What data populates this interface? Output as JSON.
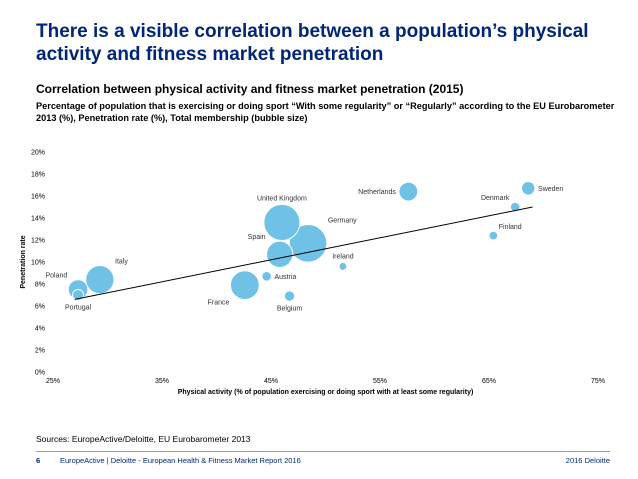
{
  "slide": {
    "title": "There is a visible correlation between a population’s physical activity and fitness market penetration",
    "subtitle": "Correlation between physical activity and fitness market penetration (2015)",
    "description": "Percentage of population that is exercising or doing sport “With some regularity” or “Regularly” according to the EU Eurobarometer 2013 (%), Penetration rate (%), Total membership (bubble size)",
    "sources": "Sources: EuropeActive/Deloitte, EU Eurobarometer 2013",
    "page_number": "6",
    "footer_text": "EuropeActive | Deloitte - European Health & Fitness Market Report 2016",
    "footer_right": "2016 Deloitte"
  },
  "colors": {
    "title": "#002776",
    "bubble": "#6fc2e6",
    "footer_line": "#86bc25"
  },
  "chart_data": {
    "type": "scatter",
    "xlabel": "Physical activity (% of population exercising or doing sport with at least some regularity)",
    "ylabel": "Penetration rate",
    "xlim": [
      0.25,
      0.75
    ],
    "ylim": [
      0,
      0.2
    ],
    "x_ticks": [
      "25%",
      "35%",
      "45%",
      "55%",
      "65%",
      "75%"
    ],
    "y_ticks": [
      "0%",
      "2%",
      "4%",
      "6%",
      "8%",
      "10%",
      "12%",
      "14%",
      "16%",
      "18%",
      "20%"
    ],
    "grid": false,
    "trendline": {
      "x": [
        0.27,
        0.69
      ],
      "y": [
        0.066,
        0.15
      ]
    },
    "points": [
      {
        "label": "Sweden",
        "x": 0.686,
        "y": 0.167,
        "size": 1.2,
        "label_pos": "right"
      },
      {
        "label": "Netherlands",
        "x": 0.576,
        "y": 0.164,
        "size": 2.3,
        "label_pos": "left"
      },
      {
        "label": "Denmark",
        "x": 0.674,
        "y": 0.15,
        "size": 0.6,
        "label_pos": "left-above"
      },
      {
        "label": "Finland",
        "x": 0.654,
        "y": 0.124,
        "size": 0.5,
        "label_pos": "right-above"
      },
      {
        "label": "United Kingdom",
        "x": 0.46,
        "y": 0.136,
        "size": 8.5,
        "label_pos": "above"
      },
      {
        "label": "Germany",
        "x": 0.484,
        "y": 0.117,
        "size": 9.2,
        "label_pos": "right-above"
      },
      {
        "label": "Spain",
        "x": 0.458,
        "y": 0.107,
        "size": 4.5,
        "label_pos": "left-above"
      },
      {
        "label": "Ireland",
        "x": 0.516,
        "y": 0.096,
        "size": 0.4,
        "label_pos": "above"
      },
      {
        "label": "Austria",
        "x": 0.446,
        "y": 0.087,
        "size": 0.6,
        "label_pos": "right"
      },
      {
        "label": "France",
        "x": 0.426,
        "y": 0.079,
        "size": 5.4,
        "label_pos": "left-below"
      },
      {
        "label": "Belgium",
        "x": 0.467,
        "y": 0.069,
        "size": 0.7,
        "label_pos": "below"
      },
      {
        "label": "Italy",
        "x": 0.293,
        "y": 0.084,
        "size": 5.2,
        "label_pos": "right-above"
      },
      {
        "label": "Poland",
        "x": 0.273,
        "y": 0.075,
        "size": 2.5,
        "label_pos": "left-above"
      },
      {
        "label": "Portugal",
        "x": 0.273,
        "y": 0.07,
        "size": 0.8,
        "label_pos": "below"
      }
    ]
  }
}
